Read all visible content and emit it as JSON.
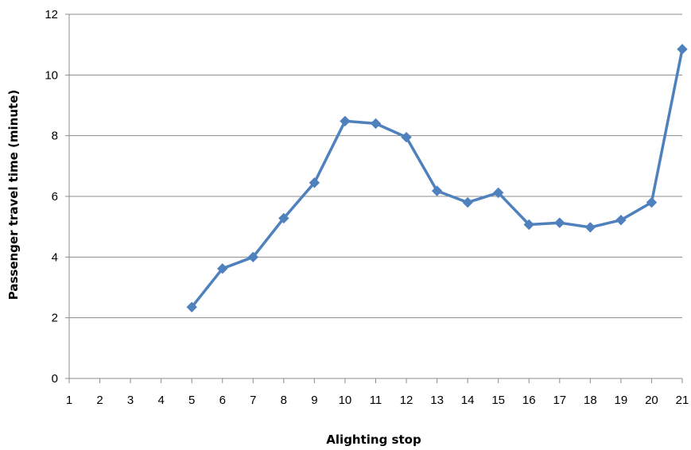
{
  "chart_data": {
    "type": "line",
    "title": "",
    "xlabel": "Alighting stop",
    "ylabel": "Passenger travel time (minute)",
    "x_categories": [
      "1",
      "2",
      "3",
      "4",
      "5",
      "6",
      "7",
      "8",
      "9",
      "10",
      "11",
      "12",
      "13",
      "14",
      "15",
      "16",
      "17",
      "18",
      "19",
      "20",
      "21"
    ],
    "ylim": [
      0,
      12
    ],
    "yticks": [
      "0",
      "2",
      "4",
      "6",
      "8",
      "10",
      "12"
    ],
    "grid": true,
    "legend": "none",
    "series": [
      {
        "color": "#4F81BD",
        "marker": "diamond",
        "points": [
          {
            "x": 5,
            "y": 2.35
          },
          {
            "x": 6,
            "y": 3.62
          },
          {
            "x": 7,
            "y": 4.0
          },
          {
            "x": 8,
            "y": 5.28
          },
          {
            "x": 9,
            "y": 6.45
          },
          {
            "x": 10,
            "y": 8.48
          },
          {
            "x": 11,
            "y": 8.4
          },
          {
            "x": 12,
            "y": 7.95
          },
          {
            "x": 13,
            "y": 6.18
          },
          {
            "x": 14,
            "y": 5.8
          },
          {
            "x": 15,
            "y": 6.12
          },
          {
            "x": 16,
            "y": 5.07
          },
          {
            "x": 17,
            "y": 5.13
          },
          {
            "x": 18,
            "y": 4.98
          },
          {
            "x": 19,
            "y": 5.22
          },
          {
            "x": 20,
            "y": 5.8
          },
          {
            "x": 21,
            "y": 10.85
          }
        ]
      }
    ]
  }
}
